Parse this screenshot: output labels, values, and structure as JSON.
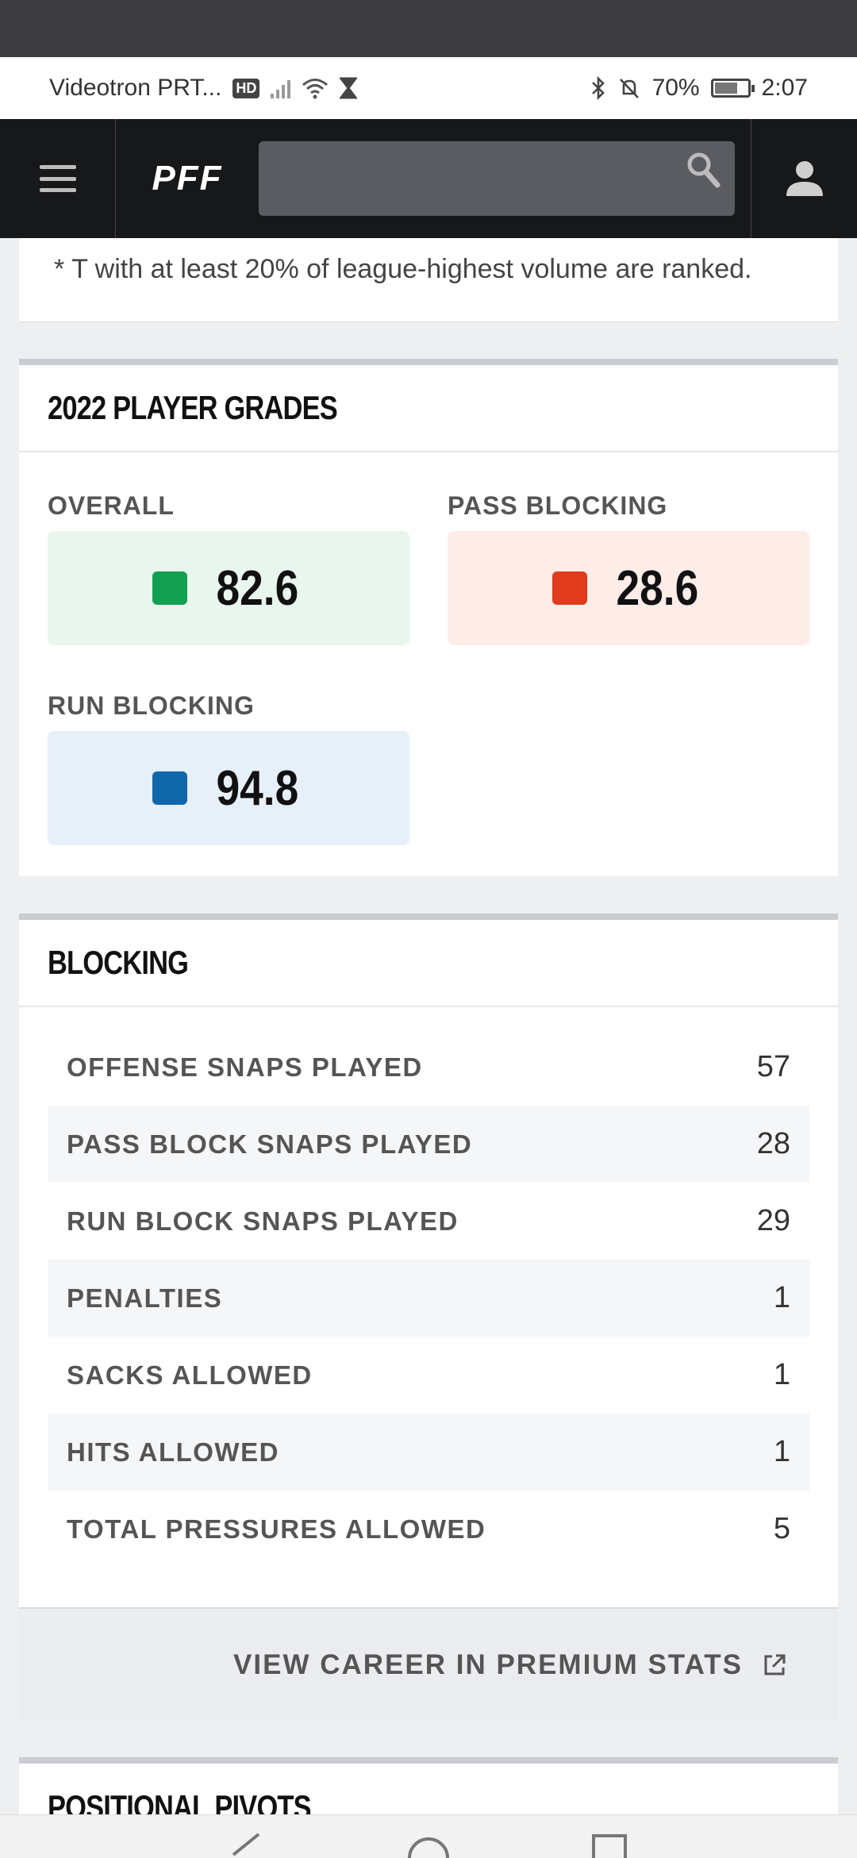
{
  "status_bar": {
    "carrier": "Videotron PRT...",
    "hd_badge": "HD",
    "battery": "70%",
    "battery_level": 0.7,
    "time": "2:07"
  },
  "navbar": {
    "logo": "PFF",
    "search_placeholder": ""
  },
  "note": {
    "text": "* T with at least 20% of league-highest volume are ranked."
  },
  "grades": {
    "title": "2022 PLAYER GRADES",
    "items": [
      {
        "label": "OVERALL",
        "value": "82.6",
        "color": "#13a052",
        "bg": "#e9f6ee"
      },
      {
        "label": "PASS BLOCKING",
        "value": "28.6",
        "color": "#e03b1c",
        "bg": "#fdece8"
      },
      {
        "label": "RUN BLOCKING",
        "value": "94.8",
        "color": "#0f67aa",
        "bg": "#e7eff8"
      }
    ]
  },
  "blocking": {
    "title": "BLOCKING",
    "rows": [
      {
        "label": "OFFENSE SNAPS PLAYED",
        "value": "57"
      },
      {
        "label": "PASS BLOCK SNAPS PLAYED",
        "value": "28"
      },
      {
        "label": "RUN BLOCK SNAPS PLAYED",
        "value": "29"
      },
      {
        "label": "PENALTIES",
        "value": "1"
      },
      {
        "label": "SACKS ALLOWED",
        "value": "1"
      },
      {
        "label": "HITS ALLOWED",
        "value": "1"
      },
      {
        "label": "TOTAL PRESSURES ALLOWED",
        "value": "5"
      }
    ],
    "career_link": "VIEW CAREER IN PREMIUM STATS"
  },
  "pivots": {
    "title": "POSITIONAL PIVOTS"
  }
}
